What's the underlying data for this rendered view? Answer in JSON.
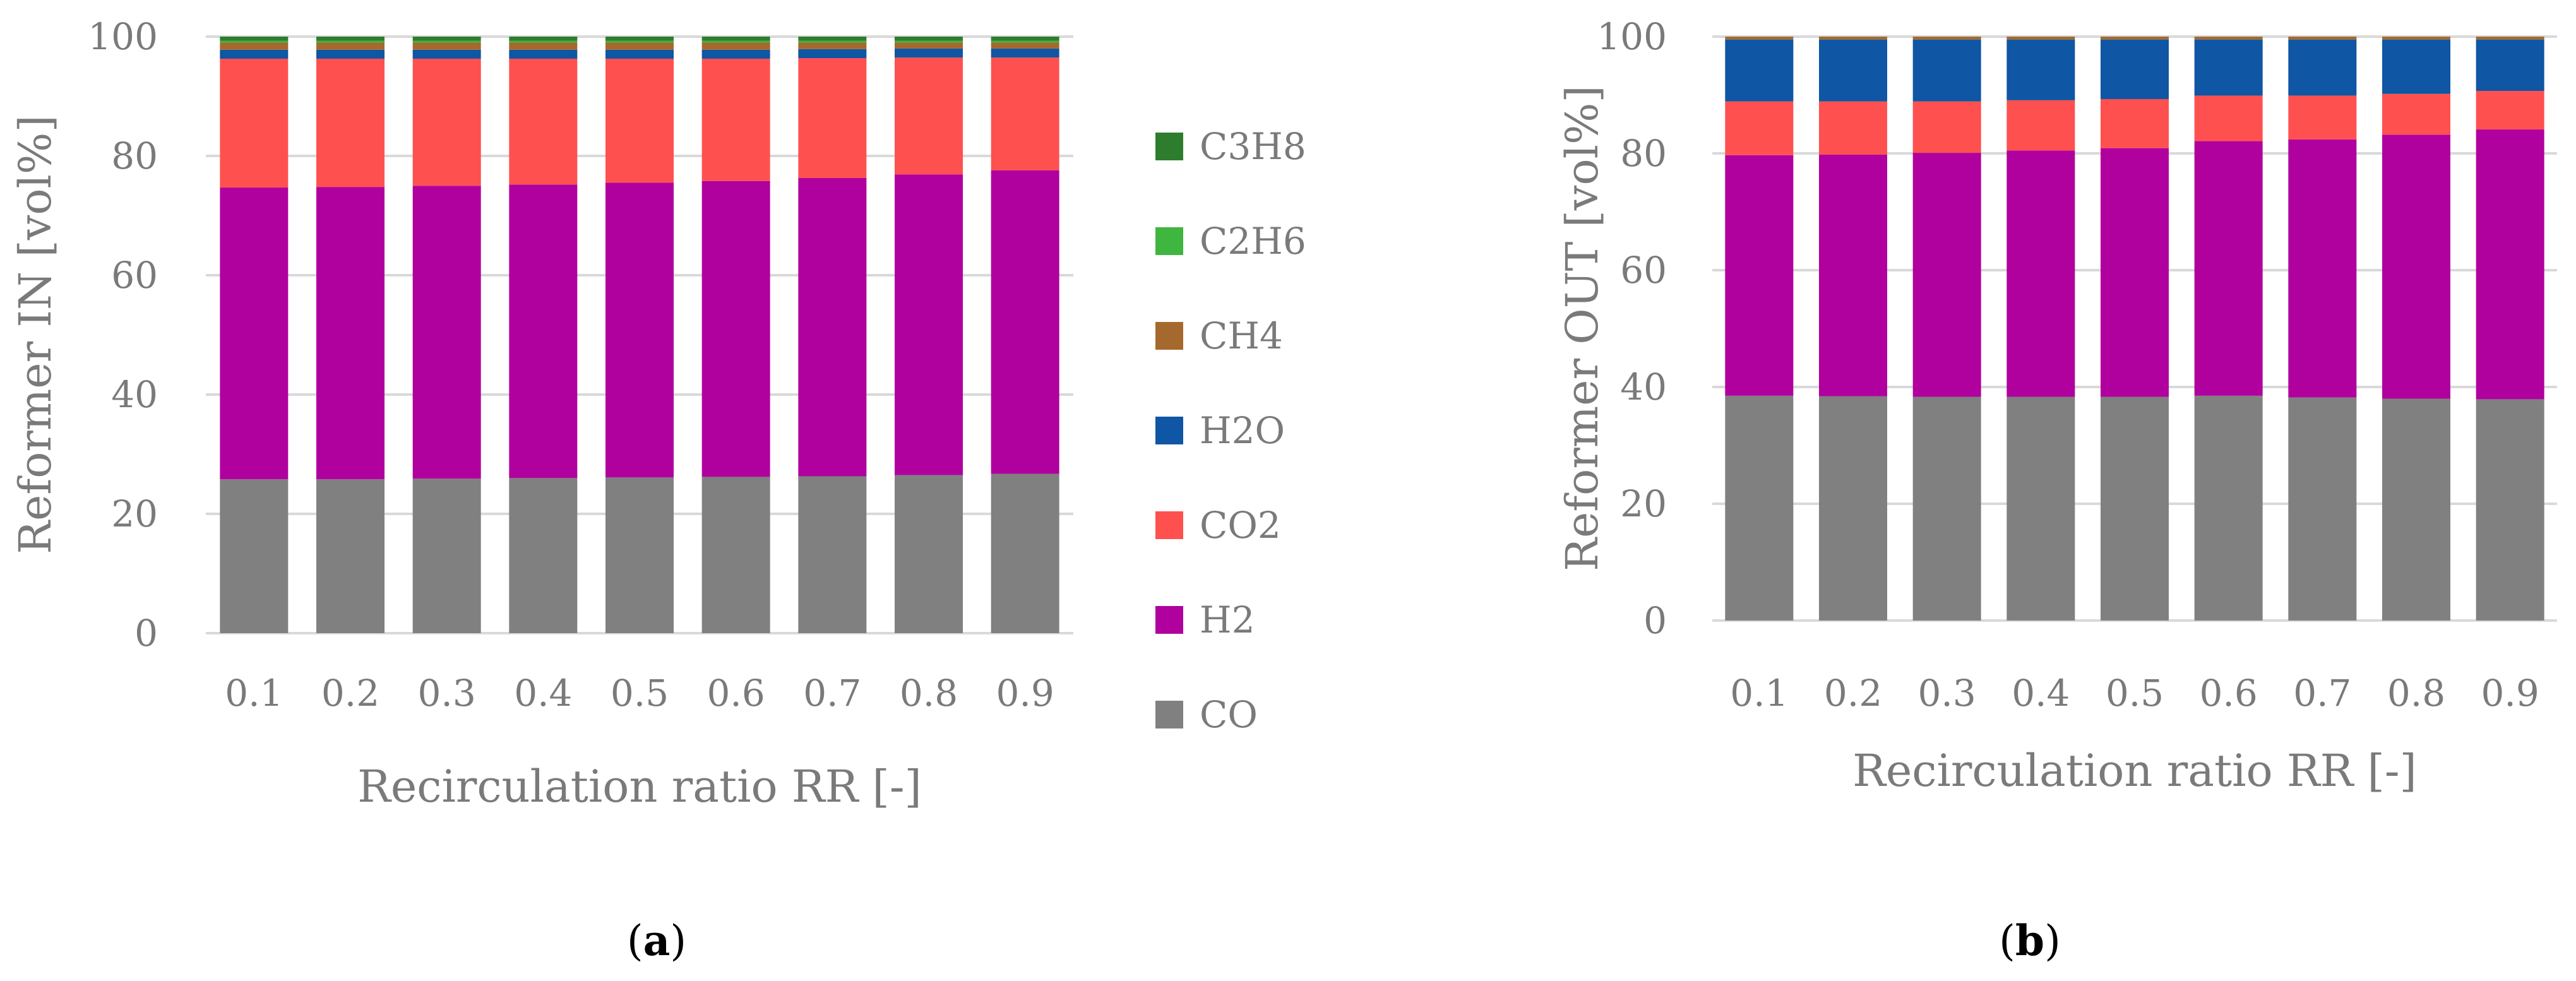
{
  "chart_data": [
    {
      "panel": "a",
      "type": "bar",
      "stacked": true,
      "caption_letter": "a",
      "xlabel": "Recirculation ratio RR [-]",
      "ylabel": "Reformer IN [vol%]",
      "ylim": [
        0,
        100
      ],
      "yticks": [
        "0",
        "20",
        "40",
        "60",
        "80",
        "100"
      ],
      "categories": [
        "0.1",
        "0.2",
        "0.3",
        "0.4",
        "0.5",
        "0.6",
        "0.7",
        "0.8",
        "0.9"
      ],
      "legend_position": "right",
      "series": [
        {
          "name": "CO",
          "color": "#808080",
          "values": [
            25.8,
            25.8,
            25.9,
            26.0,
            26.1,
            26.2,
            26.3,
            26.5,
            26.7
          ]
        },
        {
          "name": "H2",
          "color": "#b0009e",
          "values": [
            48.9,
            49.0,
            49.1,
            49.2,
            49.4,
            49.6,
            50.0,
            50.4,
            50.9
          ]
        },
        {
          "name": "CO2",
          "color": "#ff5050",
          "values": [
            21.6,
            21.5,
            21.3,
            21.1,
            20.8,
            20.5,
            20.1,
            19.6,
            18.9
          ]
        },
        {
          "name": "H2O",
          "color": "#0f56a4",
          "values": [
            1.5,
            1.5,
            1.5,
            1.5,
            1.5,
            1.5,
            1.5,
            1.5,
            1.5
          ]
        },
        {
          "name": "CH4",
          "color": "#a5692e",
          "values": [
            1.2,
            1.2,
            1.2,
            1.2,
            1.2,
            1.2,
            1.1,
            1.0,
            1.0
          ]
        },
        {
          "name": "C2H6",
          "color": "#3fb63f",
          "values": [
            0.3,
            0.3,
            0.3,
            0.3,
            0.3,
            0.3,
            0.3,
            0.3,
            0.3
          ]
        },
        {
          "name": "C3H8",
          "color": "#2e7d2e",
          "values": [
            0.7,
            0.7,
            0.7,
            0.7,
            0.7,
            0.7,
            0.7,
            0.7,
            0.7
          ]
        }
      ],
      "legend_order": [
        "C3H8",
        "C2H6",
        "CH4",
        "H2O",
        "CO2",
        "H2",
        "CO"
      ]
    },
    {
      "panel": "b",
      "type": "bar",
      "stacked": true,
      "caption_letter": "b",
      "xlabel": "Recirculation ratio RR [-]",
      "ylabel": "Reformer OUT [vol%]",
      "ylim": [
        0,
        100
      ],
      "yticks": [
        "0",
        "20",
        "40",
        "60",
        "80",
        "100"
      ],
      "categories": [
        "0.1",
        "0.2",
        "0.3",
        "0.4",
        "0.5",
        "0.6",
        "0.7",
        "0.8",
        "0.9"
      ],
      "series": [
        {
          "name": "CO",
          "color": "#808080",
          "values": [
            38.5,
            38.4,
            38.3,
            38.3,
            38.3,
            38.5,
            38.2,
            38.0,
            37.9
          ]
        },
        {
          "name": "H2",
          "color": "#b0009e",
          "values": [
            41.2,
            41.4,
            41.8,
            42.2,
            42.6,
            43.6,
            44.2,
            45.2,
            46.2
          ]
        },
        {
          "name": "CO2",
          "color": "#ff5050",
          "values": [
            9.2,
            9.1,
            8.8,
            8.6,
            8.4,
            7.8,
            7.5,
            7.0,
            6.6
          ]
        },
        {
          "name": "H2O",
          "color": "#0f56a4",
          "values": [
            10.6,
            10.6,
            10.6,
            10.4,
            10.2,
            9.6,
            9.6,
            9.3,
            8.8
          ]
        },
        {
          "name": "CH4",
          "color": "#a5692e",
          "values": [
            0.5,
            0.5,
            0.5,
            0.5,
            0.5,
            0.5,
            0.5,
            0.5,
            0.5
          ]
        }
      ]
    }
  ]
}
